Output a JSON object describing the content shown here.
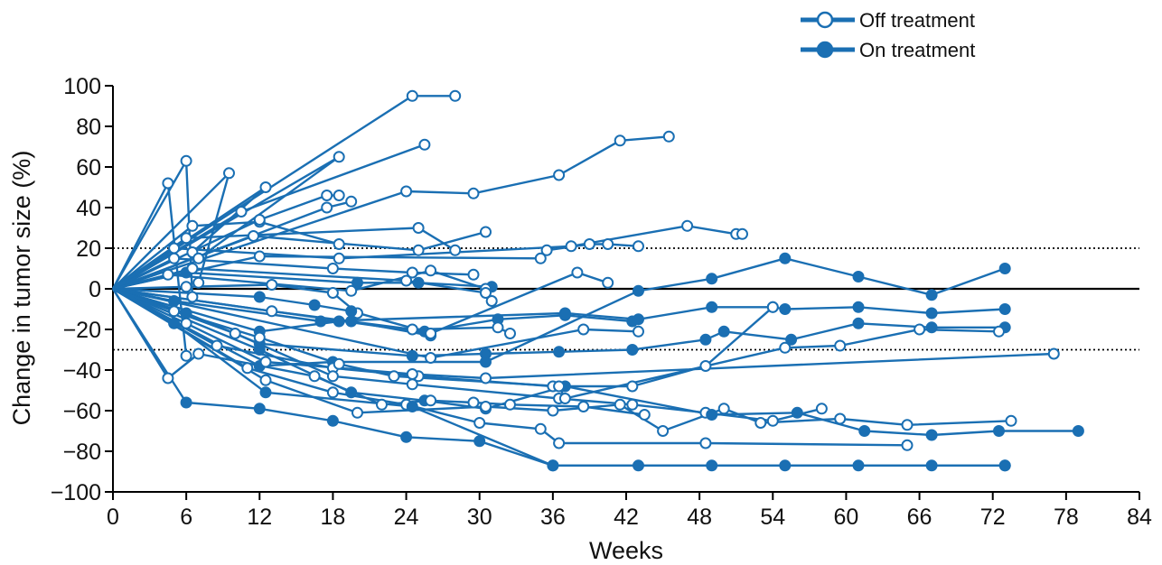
{
  "chart_data": {
    "type": "line",
    "title": "",
    "xlabel": "Weeks",
    "ylabel": "Change in tumor size (%)",
    "xlim": [
      0,
      84
    ],
    "ylim": [
      -100,
      100
    ],
    "x_ticks": [
      0,
      6,
      12,
      18,
      24,
      30,
      36,
      42,
      48,
      54,
      60,
      66,
      72,
      78,
      84
    ],
    "y_ticks": [
      100,
      80,
      60,
      40,
      20,
      0,
      -20,
      -40,
      -60,
      -80,
      -100
    ],
    "reference_lines": [
      {
        "y": 20,
        "style": "dotted"
      },
      {
        "y": 0,
        "style": "solid"
      },
      {
        "y": -30,
        "style": "dotted"
      }
    ],
    "legend": {
      "position": "top-right",
      "entries": [
        {
          "label": "Off treatment",
          "marker": "open"
        },
        {
          "label": "On treatment",
          "marker": "filled"
        }
      ]
    },
    "line_color": "#1a6fb3",
    "series": [
      {
        "points": [
          [
            0,
            0
          ],
          [
            4.5,
            52
          ],
          [
            6,
            -33
          ]
        ],
        "end": "open"
      },
      {
        "points": [
          [
            0,
            0
          ],
          [
            6,
            63
          ],
          [
            6.5,
            -4
          ]
        ],
        "end": "open"
      },
      {
        "points": [
          [
            0,
            0
          ],
          [
            9.5,
            57
          ],
          [
            7,
            3
          ]
        ],
        "end": "open"
      },
      {
        "points": [
          [
            0,
            0
          ],
          [
            12.5,
            50
          ],
          [
            6.5,
            18
          ]
        ],
        "end": "open"
      },
      {
        "points": [
          [
            0,
            0
          ],
          [
            6.5,
            31
          ],
          [
            12,
            33
          ],
          [
            18.5,
            22
          ]
        ],
        "end": "open"
      },
      {
        "points": [
          [
            0,
            0
          ],
          [
            18.5,
            65
          ],
          [
            7,
            15
          ]
        ],
        "end": "open"
      },
      {
        "points": [
          [
            0,
            0
          ],
          [
            24.5,
            95
          ],
          [
            28,
            95
          ]
        ],
        "end": "open"
      },
      {
        "points": [
          [
            0,
            0
          ],
          [
            10.5,
            38
          ],
          [
            25.5,
            71
          ]
        ],
        "end": "open"
      },
      {
        "points": [
          [
            0,
            0
          ],
          [
            12,
            34
          ],
          [
            17.5,
            46
          ],
          [
            18.5,
            46
          ]
        ],
        "end": "open"
      },
      {
        "points": [
          [
            0,
            0
          ],
          [
            17.5,
            40
          ],
          [
            19.5,
            43
          ]
        ],
        "end": "open"
      },
      {
        "points": [
          [
            0,
            0
          ],
          [
            24,
            48
          ],
          [
            29.5,
            47
          ],
          [
            36.5,
            56
          ],
          [
            41.5,
            73
          ],
          [
            45.5,
            75
          ]
        ],
        "end": "open"
      },
      {
        "points": [
          [
            0,
            0
          ],
          [
            6,
            25
          ],
          [
            25,
            30
          ],
          [
            28,
            19
          ]
        ],
        "end": "open"
      },
      {
        "points": [
          [
            0,
            0
          ],
          [
            11.5,
            26
          ],
          [
            25,
            19
          ],
          [
            30.5,
            28
          ]
        ],
        "end": "open"
      },
      {
        "points": [
          [
            0,
            0
          ],
          [
            12,
            16
          ],
          [
            35,
            15
          ],
          [
            35.5,
            19
          ],
          [
            39,
            22
          ],
          [
            40.5,
            22
          ],
          [
            43,
            21
          ]
        ],
        "end": "open"
      },
      {
        "points": [
          [
            0,
            0
          ],
          [
            5,
            20
          ],
          [
            18.5,
            15
          ],
          [
            37.5,
            21
          ],
          [
            47,
            31
          ],
          [
            51,
            27
          ],
          [
            51.5,
            27
          ]
        ],
        "end": "open"
      },
      {
        "points": [
          [
            0,
            0
          ],
          [
            5,
            15
          ],
          [
            18,
            10
          ],
          [
            24.5,
            8
          ],
          [
            29.5,
            7
          ]
        ],
        "end": "open"
      },
      {
        "points": [
          [
            0,
            0
          ],
          [
            6,
            8
          ],
          [
            20,
            3
          ],
          [
            25,
            3
          ],
          [
            31,
            1
          ]
        ],
        "end": "filled"
      },
      {
        "points": [
          [
            0,
            0
          ],
          [
            4.5,
            7
          ],
          [
            19.5,
            -1
          ],
          [
            26,
            9
          ],
          [
            30.5,
            0
          ]
        ],
        "end": "open"
      },
      {
        "points": [
          [
            0,
            0
          ],
          [
            6,
            1
          ],
          [
            13,
            2
          ],
          [
            18,
            -2
          ],
          [
            20,
            -12
          ]
        ],
        "end": "open"
      },
      {
        "points": [
          [
            0,
            0
          ],
          [
            6.5,
            10
          ],
          [
            24,
            4
          ],
          [
            30.5,
            -2
          ],
          [
            31,
            -6
          ]
        ],
        "end": "open"
      },
      {
        "points": [
          [
            0,
            0
          ],
          [
            12,
            -4
          ],
          [
            16.5,
            -8
          ],
          [
            19.5,
            -11
          ],
          [
            25.5,
            -21
          ],
          [
            31.5,
            -15
          ],
          [
            37,
            -13
          ],
          [
            42.5,
            -16
          ]
        ],
        "end": "filled"
      },
      {
        "points": [
          [
            0,
            0
          ],
          [
            13,
            -11
          ],
          [
            24.5,
            -20
          ],
          [
            31.5,
            -19
          ],
          [
            32.5,
            -22
          ]
        ],
        "end": "open"
      },
      {
        "points": [
          [
            0,
            0
          ],
          [
            12,
            -21
          ],
          [
            18.5,
            -16
          ],
          [
            19.5,
            -16
          ],
          [
            26,
            -23
          ]
        ],
        "end": "filled"
      },
      {
        "points": [
          [
            0,
            0
          ],
          [
            5,
            -6
          ],
          [
            17,
            -16
          ],
          [
            37,
            -12
          ],
          [
            43,
            -15
          ],
          [
            49,
            -9
          ],
          [
            54,
            -9
          ],
          [
            55,
            -10
          ],
          [
            61,
            -9
          ],
          [
            67,
            -12
          ],
          [
            73,
            -10
          ]
        ],
        "end": "filled"
      },
      {
        "points": [
          [
            0,
            0
          ],
          [
            26,
            -34
          ],
          [
            38.5,
            -20
          ],
          [
            43,
            -21
          ]
        ],
        "end": "open"
      },
      {
        "points": [
          [
            0,
            0
          ],
          [
            26,
            -22
          ],
          [
            38,
            8
          ],
          [
            40.5,
            3
          ]
        ],
        "end": "open"
      },
      {
        "points": [
          [
            0,
            0
          ],
          [
            6,
            -12
          ],
          [
            12,
            -27
          ],
          [
            24.5,
            -33
          ],
          [
            30.5,
            -32
          ],
          [
            36.5,
            -31
          ],
          [
            42.5,
            -30
          ],
          [
            48.5,
            -25
          ],
          [
            50,
            -21
          ],
          [
            55.5,
            -25
          ],
          [
            61,
            -17
          ],
          [
            67,
            -19
          ],
          [
            73,
            -19
          ]
        ],
        "end": "filled"
      },
      {
        "points": [
          [
            0,
            0
          ],
          [
            12,
            -38
          ],
          [
            18,
            -36
          ],
          [
            30.5,
            -36
          ],
          [
            43,
            -1
          ],
          [
            49,
            5
          ],
          [
            55,
            15
          ],
          [
            61,
            6
          ],
          [
            67,
            -3
          ],
          [
            73,
            10
          ]
        ],
        "end": "filled"
      },
      {
        "points": [
          [
            0,
            0
          ],
          [
            8.5,
            -28
          ],
          [
            18,
            -39
          ],
          [
            25,
            -43
          ],
          [
            36,
            -48
          ],
          [
            42.5,
            -48
          ],
          [
            48.5,
            -38
          ],
          [
            54,
            -9
          ]
        ],
        "end": "open"
      },
      {
        "points": [
          [
            0,
            0
          ],
          [
            10,
            -22
          ],
          [
            18,
            -43
          ],
          [
            24.5,
            -47
          ],
          [
            36.5,
            -54
          ],
          [
            42.5,
            -57
          ],
          [
            48.5,
            -61
          ],
          [
            54,
            -65
          ],
          [
            58,
            -59
          ]
        ],
        "end": "open"
      },
      {
        "points": [
          [
            0,
            0
          ],
          [
            11,
            -39
          ],
          [
            18,
            -51
          ],
          [
            24,
            -57
          ],
          [
            30,
            -66
          ],
          [
            35,
            -69
          ],
          [
            36.5,
            -76
          ],
          [
            48.5,
            -76
          ],
          [
            65,
            -77
          ]
        ],
        "end": "open"
      },
      {
        "points": [
          [
            0,
            0
          ],
          [
            12,
            -30
          ],
          [
            19.5,
            -51
          ],
          [
            25.5,
            -55
          ],
          [
            30.5,
            -59
          ],
          [
            37,
            -48
          ],
          [
            49,
            -62
          ],
          [
            56,
            -61
          ],
          [
            61.5,
            -70
          ],
          [
            67,
            -72
          ],
          [
            72.5,
            -70
          ],
          [
            79,
            -70
          ]
        ],
        "end": "filled"
      },
      {
        "points": [
          [
            0,
            0
          ],
          [
            12.5,
            -45
          ],
          [
            20,
            -61
          ],
          [
            30.5,
            -58
          ],
          [
            36,
            -60
          ],
          [
            41.5,
            -57
          ],
          [
            45,
            -70
          ],
          [
            50,
            -59
          ],
          [
            53,
            -66
          ],
          [
            59.5,
            -64
          ],
          [
            65,
            -67
          ],
          [
            73.5,
            -65
          ]
        ],
        "end": "open"
      },
      {
        "points": [
          [
            0,
            0
          ],
          [
            5,
            -17
          ],
          [
            12.5,
            -51
          ],
          [
            24.5,
            -58
          ],
          [
            36,
            -87
          ],
          [
            73,
            -87
          ]
        ],
        "end": "filled"
      },
      {
        "points": [
          [
            0,
            0
          ],
          [
            6,
            -56
          ],
          [
            12,
            -59
          ],
          [
            18,
            -65
          ],
          [
            24,
            -73
          ],
          [
            30,
            -75
          ],
          [
            36,
            -87
          ],
          [
            43,
            -87
          ],
          [
            49,
            -87
          ],
          [
            55,
            -87
          ],
          [
            61,
            -87
          ],
          [
            67,
            -87
          ],
          [
            73,
            -87
          ]
        ],
        "end": "filled"
      },
      {
        "points": [
          [
            0,
            0
          ],
          [
            4.5,
            -44
          ],
          [
            7,
            -32
          ],
          [
            16.5,
            -43
          ],
          [
            22,
            -57
          ],
          [
            26,
            -55
          ],
          [
            29.5,
            -56
          ],
          [
            32.5,
            -57
          ],
          [
            38.5,
            -58
          ],
          [
            43.5,
            -62
          ]
        ],
        "end": "open"
      },
      {
        "points": [
          [
            0,
            0
          ],
          [
            5,
            -11
          ],
          [
            12,
            -24
          ],
          [
            18.5,
            -37
          ],
          [
            23,
            -43
          ],
          [
            36.5,
            -48
          ],
          [
            37,
            -54
          ],
          [
            55,
            -29
          ],
          [
            59.5,
            -28
          ],
          [
            66,
            -20
          ],
          [
            72.5,
            -21
          ]
        ],
        "end": "open"
      },
      {
        "points": [
          [
            0,
            0
          ],
          [
            6,
            -17
          ],
          [
            12.5,
            -36
          ],
          [
            24.5,
            -42
          ],
          [
            30.5,
            -44
          ],
          [
            77,
            -32
          ]
        ],
        "end": "open"
      }
    ]
  }
}
